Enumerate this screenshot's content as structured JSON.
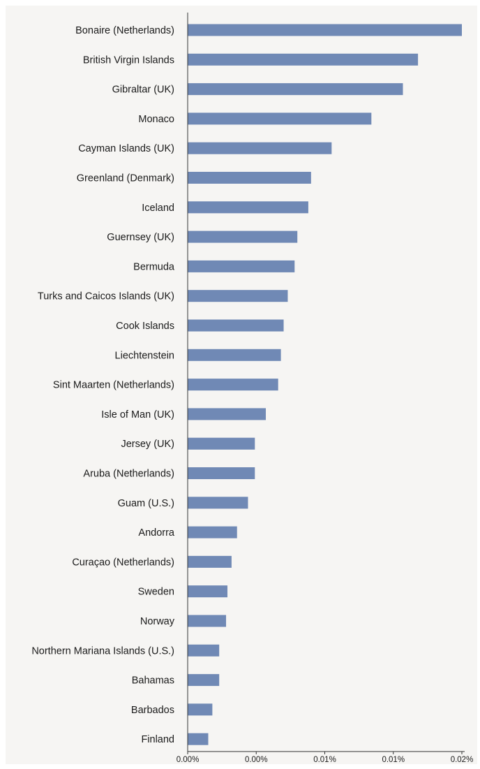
{
  "chart_data": {
    "type": "bar",
    "orientation": "horizontal",
    "categories": [
      "Bonaire (Netherlands)",
      "British Virgin Islands",
      "Gibraltar (UK)",
      "Monaco",
      "Cayman Islands (UK)",
      "Greenland (Denmark)",
      "Iceland",
      "Guernsey (UK)",
      "Bermuda",
      "Turks and Caicos Islands (UK)",
      "Cook Islands",
      "Liechtenstein",
      "Sint Maarten (Netherlands)",
      "Isle of Man (UK)",
      "Jersey (UK)",
      "Aruba (Netherlands)",
      "Guam (U.S.)",
      "Andorra",
      "Curaçao (Netherlands)",
      "Sweden",
      "Norway",
      "Northern Mariana Islands (U.S.)",
      "Bahamas",
      "Barbados",
      "Finland"
    ],
    "values": [
      0.02,
      0.0168,
      0.0157,
      0.0134,
      0.0105,
      0.009,
      0.0088,
      0.008,
      0.0078,
      0.0073,
      0.007,
      0.0068,
      0.0066,
      0.0057,
      0.0049,
      0.0049,
      0.0044,
      0.0036,
      0.0032,
      0.0029,
      0.0028,
      0.0023,
      0.0023,
      0.0018,
      0.0015
    ],
    "xlim": [
      0,
      0.02
    ],
    "x_ticks": [
      0,
      0.005,
      0.01,
      0.015,
      0.02
    ],
    "x_tick_labels": [
      "0.00%",
      "0.00%",
      "0.01%",
      "0.01%",
      "0.02%"
    ],
    "bar_color": "#7089b5",
    "background_color": "#f6f5f3",
    "grid": false,
    "legend": "none"
  }
}
